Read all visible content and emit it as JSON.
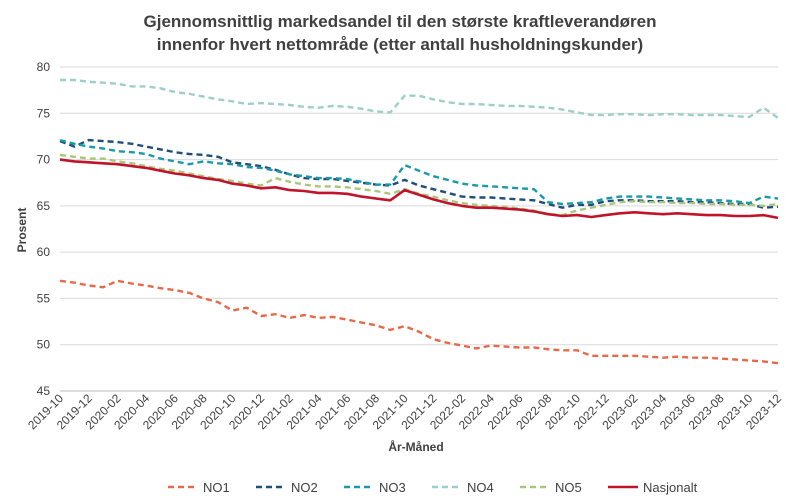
{
  "chart_data": {
    "type": "line",
    "title_lines": [
      "Gjennomsnittlig markedsandel til den største kraftleverandøren",
      "innenfor hvert nettområde (etter antall husholdningskunder)"
    ],
    "xlabel": "År-Måned",
    "ylabel": "Prosent",
    "ylim": [
      45,
      80
    ],
    "yticks": [
      45,
      50,
      55,
      60,
      65,
      70,
      75,
      80
    ],
    "grid": "horizontal",
    "legend_position": "bottom",
    "x": [
      "2019-10",
      "2019-11",
      "2019-12",
      "2020-01",
      "2020-02",
      "2020-03",
      "2020-04",
      "2020-05",
      "2020-06",
      "2020-07",
      "2020-08",
      "2020-09",
      "2020-10",
      "2020-11",
      "2020-12",
      "2021-01",
      "2021-02",
      "2021-03",
      "2021-04",
      "2021-05",
      "2021-06",
      "2021-07",
      "2021-08",
      "2021-09",
      "2021-10",
      "2021-11",
      "2021-12",
      "2022-01",
      "2022-02",
      "2022-03",
      "2022-04",
      "2022-05",
      "2022-06",
      "2022-07",
      "2022-08",
      "2022-09",
      "2022-10",
      "2022-11",
      "2022-12",
      "2023-01",
      "2023-02",
      "2023-03",
      "2023-04",
      "2023-05",
      "2023-06",
      "2023-07",
      "2023-08",
      "2023-09",
      "2023-10",
      "2023-11",
      "2023-12"
    ],
    "xtick_labels": [
      "2019-10",
      "2019-12",
      "2020-02",
      "2020-04",
      "2020-06",
      "2020-08",
      "2020-10",
      "2020-12",
      "2021-02",
      "2021-04",
      "2021-06",
      "2021-08",
      "2021-10",
      "2021-12",
      "2022-02",
      "2022-04",
      "2022-06",
      "2022-08",
      "2022-10",
      "2022-12",
      "2023-02",
      "2023-04",
      "2023-06",
      "2023-08",
      "2023-10",
      "2023-12"
    ],
    "series": [
      {
        "name": "NO1",
        "color": "#E8694A",
        "style": "dashed",
        "values": [
          56.9,
          56.7,
          56.4,
          56.2,
          56.9,
          56.6,
          56.4,
          56.1,
          55.9,
          55.6,
          55.0,
          54.6,
          53.7,
          54.0,
          53.1,
          53.3,
          52.9,
          53.2,
          52.9,
          53.0,
          52.7,
          52.4,
          52.1,
          51.6,
          52.0,
          51.4,
          50.6,
          50.2,
          49.9,
          49.6,
          49.9,
          49.8,
          49.7,
          49.7,
          49.5,
          49.4,
          49.4,
          48.8,
          48.8,
          48.8,
          48.8,
          48.7,
          48.6,
          48.7,
          48.6,
          48.6,
          48.5,
          48.4,
          48.3,
          48.2,
          48.0
        ]
      },
      {
        "name": "NO2",
        "color": "#1F4E79",
        "style": "dashed",
        "values": [
          72.0,
          71.4,
          72.1,
          72.0,
          71.9,
          71.7,
          71.4,
          71.1,
          70.8,
          70.6,
          70.5,
          70.3,
          69.7,
          69.5,
          69.3,
          68.9,
          68.4,
          68.0,
          67.9,
          67.9,
          67.7,
          67.5,
          67.3,
          67.2,
          67.8,
          67.2,
          66.8,
          66.4,
          66.0,
          65.9,
          65.9,
          65.8,
          65.7,
          65.6,
          65.2,
          64.8,
          65.1,
          65.1,
          65.5,
          65.6,
          65.6,
          65.5,
          65.5,
          65.5,
          65.4,
          65.4,
          65.3,
          65.2,
          65.2,
          64.8,
          64.9
        ]
      },
      {
        "name": "NO3",
        "color": "#1A9AA8",
        "style": "dashed",
        "values": [
          72.1,
          71.7,
          71.4,
          71.2,
          70.9,
          70.8,
          70.6,
          70.1,
          69.8,
          69.5,
          69.8,
          69.6,
          69.5,
          69.2,
          69.1,
          68.8,
          68.4,
          68.2,
          68.0,
          68.0,
          67.9,
          67.6,
          67.3,
          67.3,
          69.4,
          68.8,
          68.2,
          67.8,
          67.4,
          67.2,
          67.1,
          67.0,
          66.9,
          66.8,
          65.4,
          65.2,
          65.3,
          65.4,
          65.8,
          66.0,
          66.0,
          66.0,
          65.9,
          65.8,
          65.7,
          65.6,
          65.6,
          65.5,
          65.3,
          66.0,
          65.8
        ]
      },
      {
        "name": "NO4",
        "color": "#9CCFC8",
        "style": "dashed",
        "values": [
          78.6,
          78.6,
          78.4,
          78.3,
          78.2,
          77.9,
          77.9,
          77.7,
          77.3,
          77.1,
          76.8,
          76.5,
          76.3,
          76.0,
          76.1,
          76.0,
          75.9,
          75.7,
          75.6,
          75.8,
          75.7,
          75.5,
          75.2,
          75.1,
          76.9,
          76.9,
          76.5,
          76.2,
          76.0,
          76.0,
          75.9,
          75.8,
          75.8,
          75.7,
          75.6,
          75.4,
          75.1,
          74.8,
          74.8,
          74.9,
          74.9,
          74.8,
          74.9,
          74.9,
          74.8,
          74.8,
          74.8,
          74.7,
          74.6,
          75.6,
          74.5
        ]
      },
      {
        "name": "NO5",
        "color": "#A9C77A",
        "style": "dashed",
        "values": [
          70.5,
          70.3,
          70.1,
          70.1,
          69.8,
          69.6,
          69.3,
          69.0,
          68.8,
          68.5,
          68.2,
          67.9,
          67.7,
          67.4,
          67.2,
          68.0,
          67.6,
          67.3,
          67.1,
          67.1,
          67.0,
          66.8,
          66.6,
          66.3,
          66.8,
          66.3,
          66.0,
          65.6,
          65.3,
          65.1,
          65.0,
          64.9,
          64.7,
          64.5,
          64.1,
          64.0,
          64.5,
          64.8,
          65.1,
          65.4,
          65.5,
          65.4,
          65.4,
          65.3,
          65.3,
          65.2,
          65.2,
          65.1,
          65.1,
          65.0,
          65.2
        ]
      },
      {
        "name": "Nasjonalt",
        "color": "#C0142B",
        "style": "solid",
        "values": [
          70.0,
          69.8,
          69.7,
          69.6,
          69.5,
          69.3,
          69.1,
          68.8,
          68.5,
          68.3,
          68.0,
          67.8,
          67.4,
          67.2,
          66.9,
          67.0,
          66.7,
          66.6,
          66.4,
          66.4,
          66.3,
          66.0,
          65.8,
          65.6,
          66.7,
          66.2,
          65.7,
          65.3,
          65.0,
          64.8,
          64.8,
          64.7,
          64.6,
          64.4,
          64.1,
          63.9,
          64.0,
          63.8,
          64.0,
          64.2,
          64.3,
          64.2,
          64.1,
          64.2,
          64.1,
          64.0,
          64.0,
          63.9,
          63.9,
          64.0,
          63.7
        ]
      }
    ]
  }
}
